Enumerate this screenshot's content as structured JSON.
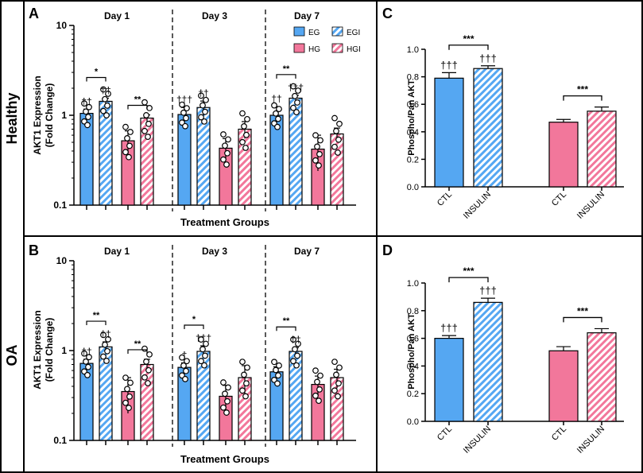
{
  "figure": {
    "row_labels": [
      "Healthy",
      "OA"
    ],
    "legend": [
      "EG",
      "HG",
      "EGI",
      "HGI"
    ],
    "colors": {
      "blue": "#55a7f2",
      "pink": "#f2779b",
      "frame": "#000000"
    }
  },
  "chart_data": [
    {
      "panel": "A",
      "type": "bar",
      "scale": "log",
      "ylabel_line1": "AKT1 Expression",
      "ylabel_line2": "(Fold Change)",
      "xlabel": "Treatment Groups",
      "ylim": [
        0.1,
        10
      ],
      "yticks": [
        "0.1",
        "1",
        "10"
      ],
      "days": [
        "Day 1",
        "Day 3",
        "Day 7"
      ],
      "groups": [
        "EG",
        "EGI",
        "HG",
        "HGI"
      ],
      "values": [
        [
          1.05,
          1.43,
          0.52,
          0.93
        ],
        [
          1.02,
          1.22,
          0.43,
          0.7
        ],
        [
          1.0,
          1.55,
          0.42,
          0.62
        ]
      ],
      "errors": [
        [
          0.12,
          0.12,
          0.15,
          0.08
        ],
        [
          0.2,
          0.22,
          0.12,
          0.15
        ],
        [
          0.25,
          0.12,
          0.18,
          0.1
        ]
      ],
      "daggers": [
        [
          "††",
          "††",
          "",
          ""
        ],
        [
          "†††",
          "††",
          "",
          ""
        ],
        [
          "††",
          "†††",
          "",
          ""
        ]
      ],
      "brackets": [
        {
          "day": 0,
          "from": 0,
          "to": 1,
          "label": "*"
        },
        {
          "day": 0,
          "from": 2,
          "to": 3,
          "label": "**"
        },
        {
          "day": 2,
          "from": 0,
          "to": 1,
          "label": "**"
        }
      ]
    },
    {
      "panel": "B",
      "type": "bar",
      "scale": "log",
      "ylabel_line1": "AKT1 Expression",
      "ylabel_line2": "(Fold Change)",
      "xlabel": "Treatment Groups",
      "ylim": [
        0.1,
        10
      ],
      "yticks": [
        "0.1",
        "1",
        "10"
      ],
      "days": [
        "Day 1",
        "Day 3",
        "Day 7"
      ],
      "groups": [
        "EG",
        "EGI",
        "HG",
        "HGI"
      ],
      "values": [
        [
          0.72,
          1.1,
          0.35,
          0.7
        ],
        [
          0.65,
          0.98,
          0.31,
          0.5
        ],
        [
          0.58,
          0.98,
          0.42,
          0.5
        ]
      ],
      "errors": [
        [
          0.08,
          0.15,
          0.15,
          0.1
        ],
        [
          0.08,
          0.15,
          0.1,
          0.18
        ],
        [
          0.08,
          0.1,
          0.1,
          0.12
        ]
      ],
      "daggers": [
        [
          "††",
          "††",
          "",
          ""
        ],
        [
          "†",
          "†††",
          "",
          ""
        ],
        [
          "",
          "††",
          "",
          ""
        ]
      ],
      "brackets": [
        {
          "day": 0,
          "from": 0,
          "to": 1,
          "label": "**"
        },
        {
          "day": 0,
          "from": 2,
          "to": 3,
          "label": "**"
        },
        {
          "day": 1,
          "from": 0,
          "to": 1,
          "label": "*"
        },
        {
          "day": 2,
          "from": 0,
          "to": 1,
          "label": "**"
        }
      ]
    },
    {
      "panel": "C",
      "type": "bar",
      "ylabel": "Phospho/Pan AKT",
      "ylim": [
        0,
        1.0
      ],
      "yticks": [
        "0.0",
        "0.2",
        "0.4",
        "0.6",
        "0.8",
        "1.0"
      ],
      "categories": [
        "CTL",
        "INSULIN",
        "CTL",
        "INSULIN"
      ],
      "values": [
        0.79,
        0.86,
        0.47,
        0.55
      ],
      "errors": [
        0.04,
        0.02,
        0.02,
        0.03
      ],
      "daggers": [
        "†††",
        "†††",
        "",
        ""
      ],
      "brackets": [
        {
          "from": 0,
          "to": 1,
          "label": "***"
        },
        {
          "from": 2,
          "to": 3,
          "label": "***"
        }
      ]
    },
    {
      "panel": "D",
      "type": "bar",
      "ylabel": "Phospho/Pan AKT",
      "ylim": [
        0,
        1.0
      ],
      "yticks": [
        "0.0",
        "0.2",
        "0.4",
        "0.6",
        "0.8",
        "1.0"
      ],
      "categories": [
        "CTL",
        "INSULIN",
        "CTL",
        "INSULIN"
      ],
      "values": [
        0.6,
        0.86,
        0.51,
        0.64
      ],
      "errors": [
        0.02,
        0.03,
        0.03,
        0.03
      ],
      "daggers": [
        "†††",
        "†††",
        "",
        ""
      ],
      "brackets": [
        {
          "from": 0,
          "to": 1,
          "label": "***"
        },
        {
          "from": 2,
          "to": 3,
          "label": "***"
        }
      ]
    }
  ]
}
